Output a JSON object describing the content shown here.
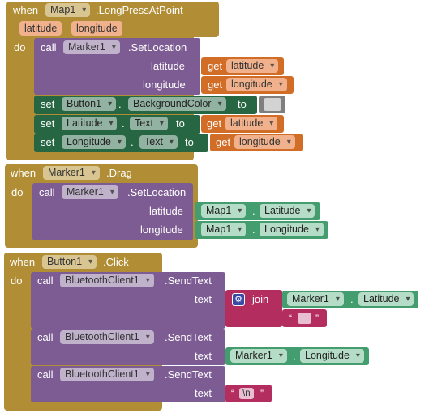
{
  "blocks": {
    "b1": {
      "when": "when",
      "component": "Map1",
      "event": ".LongPressAtPoint",
      "params": [
        "latitude",
        "longitude"
      ],
      "do": "do",
      "call1": {
        "call": "call",
        "component": "Marker1",
        "method": ".SetLocation",
        "arg1_label": "latitude",
        "arg2_label": "longitude",
        "get": "get",
        "get1": "latitude",
        "get2": "longitude"
      },
      "set1": {
        "set": "set",
        "component": "Button1",
        "dot": ".",
        "property": "BackgroundColor",
        "to": "to",
        "color": "#d3d3d3"
      },
      "set2": {
        "set": "set",
        "component": "Latitude",
        "dot": ".",
        "property": "Text",
        "to": "to",
        "get": "get",
        "var": "latitude"
      },
      "set3": {
        "set": "set",
        "component": "Longitude",
        "dot": ".",
        "property": "Text",
        "to": "to",
        "get": "get",
        "var": "longitude"
      }
    },
    "b2": {
      "when": "when",
      "component": "Marker1",
      "event": ".Drag",
      "do": "do",
      "call": "call",
      "call_component": "Marker1",
      "method": ".SetLocation",
      "arg1_label": "latitude",
      "arg2_label": "longitude",
      "val1_component": "Map1",
      "val1_property": "Latitude",
      "val2_component": "Map1",
      "val2_property": "Longitude",
      "dot": "."
    },
    "b3": {
      "when": "when",
      "component": "Button1",
      "event": ".Click",
      "do": "do",
      "call1": {
        "call": "call",
        "component": "BluetoothClient1",
        "method": ".SendText",
        "arg_label": "text",
        "join": "join",
        "gear": "⚙",
        "j_component": "Marker1",
        "j_property": "Latitude",
        "dot": ".",
        "open_quote": "“",
        "close_quote": "”"
      },
      "call2": {
        "call": "call",
        "component": "BluetoothClient1",
        "method": ".SendText",
        "arg_label": "text",
        "component_val": "Marker1",
        "property_val": "Longitude",
        "dot": "."
      },
      "call3": {
        "call": "call",
        "component": "BluetoothClient1",
        "method": ".SendText",
        "arg_label": "text",
        "open_quote": "“",
        "string": "\\n",
        "close_quote": "”"
      }
    }
  }
}
